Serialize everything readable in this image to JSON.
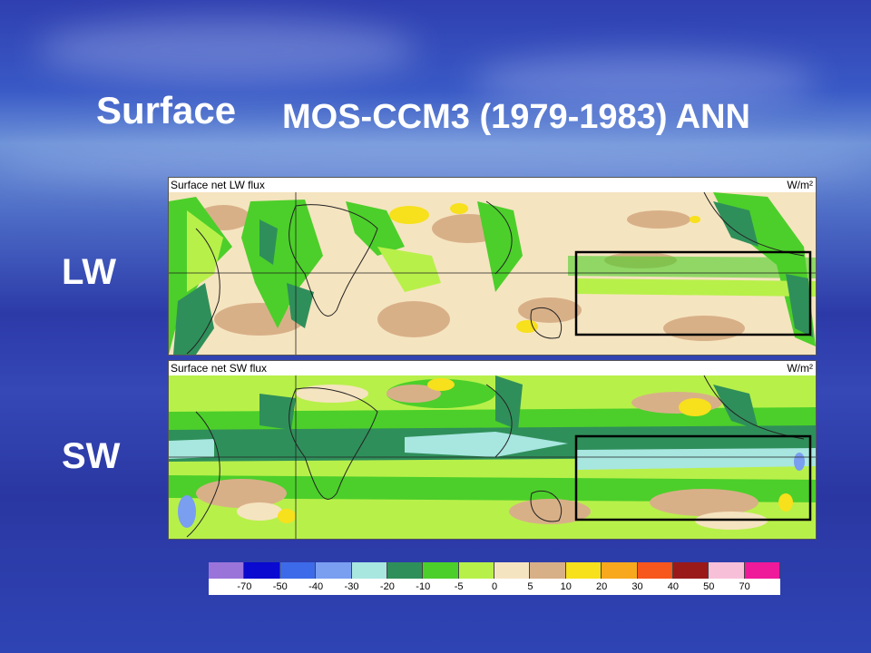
{
  "title": {
    "left": "Surface",
    "right": "MOS-CCM3 (1979-1983) ANN"
  },
  "rows": {
    "lw": "LW",
    "sw": "SW"
  },
  "panels": [
    {
      "name": "Surface net LW flux",
      "units": "W/m²"
    },
    {
      "name": "Surface net SW flux",
      "units": "W/m²"
    }
  ],
  "colorbar": {
    "colors": [
      "#9b74d9",
      "#0a0ad0",
      "#3d6ae8",
      "#7a9ef0",
      "#a8e6e0",
      "#2f8f5a",
      "#4ccf2a",
      "#b8f04a",
      "#f5e4c0",
      "#d8b088",
      "#f7e01c",
      "#f7a81c",
      "#f7561c",
      "#9a1a1a",
      "#f7c0d8",
      "#ee1a9a"
    ],
    "labels": [
      "-70",
      "-50",
      "-40",
      "-30",
      "-20",
      "-10",
      "-5",
      "0",
      "5",
      "10",
      "20",
      "30",
      "40",
      "50",
      "70"
    ]
  }
}
